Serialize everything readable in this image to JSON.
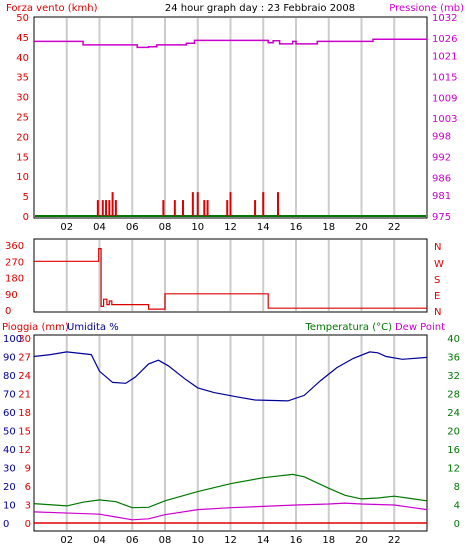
{
  "header": {
    "wind_label": "Forza vento (kmh)",
    "title": "24 hour graph day : 23 Febbraio 2008",
    "pressure_label": "Pressione (mb)"
  },
  "bottom_header": {
    "rain_label": "Pioggia (mm)",
    "humidity_label": "Umidita %",
    "temperature_label": "Temperatura (°C)",
    "dewpoint_label": "Dew Point"
  },
  "direction_labels": [
    "N",
    "W",
    "S",
    "E",
    "N"
  ],
  "x_ticks": [
    "02",
    "04",
    "06",
    "08",
    "10",
    "12",
    "14",
    "16",
    "18",
    "20",
    "22"
  ],
  "colors": {
    "wind": "#dd0000",
    "pressure": "#cc00cc",
    "humidity": "#000099",
    "temperature": "#007700",
    "dewpoint": "#cc00cc",
    "rain": "#dd0000",
    "grid": "#cccccc",
    "base": "#007700"
  },
  "chart_data": [
    {
      "type": "bar",
      "title": "24 hour graph day : 23 Febbraio 2008",
      "y_left": {
        "label": "Forza vento (kmh)",
        "ticks": [
          0,
          5,
          10,
          15,
          20,
          25,
          30,
          35,
          40,
          45,
          50
        ],
        "range": [
          0,
          50
        ]
      },
      "y_right": {
        "label": "Pressione (mb)",
        "ticks": [
          975,
          981,
          986,
          992,
          998,
          1003,
          1009,
          1015,
          1021,
          1026,
          1032
        ],
        "range": [
          975,
          1032
        ]
      },
      "wind_bars": [
        [
          3.9,
          4
        ],
        [
          4.2,
          4
        ],
        [
          4.4,
          4
        ],
        [
          4.6,
          4
        ],
        [
          4.8,
          6
        ],
        [
          5.0,
          4
        ],
        [
          7.9,
          4
        ],
        [
          8.6,
          4
        ],
        [
          9.1,
          4
        ],
        [
          9.7,
          6
        ],
        [
          10.0,
          6
        ],
        [
          10.4,
          4
        ],
        [
          10.6,
          4
        ],
        [
          11.8,
          4
        ],
        [
          12.0,
          6
        ],
        [
          13.5,
          4
        ],
        [
          14.0,
          6
        ],
        [
          14.9,
          6
        ]
      ],
      "pressure": [
        [
          0,
          1025
        ],
        [
          3,
          1024
        ],
        [
          6,
          1024
        ],
        [
          6.3,
          1023.3
        ],
        [
          7,
          1023.5
        ],
        [
          7.5,
          1024
        ],
        [
          8.5,
          1024
        ],
        [
          9.3,
          1024.5
        ],
        [
          9.8,
          1025.3
        ],
        [
          14,
          1025.3
        ],
        [
          14.3,
          1024.6
        ],
        [
          14.6,
          1025.2
        ],
        [
          15,
          1024.3
        ],
        [
          15.5,
          1024.3
        ],
        [
          15.8,
          1025
        ],
        [
          16,
          1024.3
        ],
        [
          17,
          1024.3
        ],
        [
          17.3,
          1025
        ],
        [
          20.5,
          1025
        ],
        [
          20.7,
          1025.6
        ],
        [
          24,
          1025.6
        ]
      ]
    },
    {
      "type": "line",
      "y_left": {
        "ticks": [
          0,
          90,
          180,
          270,
          360
        ],
        "range": [
          0,
          360
        ]
      },
      "y_right": {
        "ticks": [
          "N",
          "W",
          "S",
          "E",
          "N"
        ]
      },
      "direction": [
        [
          0,
          270
        ],
        [
          3.95,
          270
        ],
        [
          3.95,
          340
        ],
        [
          4.1,
          340
        ],
        [
          4.1,
          20
        ],
        [
          4.25,
          20
        ],
        [
          4.25,
          60
        ],
        [
          4.45,
          60
        ],
        [
          4.45,
          30
        ],
        [
          4.6,
          30
        ],
        [
          4.6,
          50
        ],
        [
          4.75,
          50
        ],
        [
          4.75,
          30
        ],
        [
          7,
          30
        ],
        [
          7,
          5
        ],
        [
          8,
          5
        ],
        [
          8,
          90
        ],
        [
          14.3,
          90
        ],
        [
          14.3,
          10
        ],
        [
          24,
          10
        ]
      ]
    },
    {
      "type": "line",
      "y_left": {
        "label": "Pioggia (mm)",
        "ticks": [
          0,
          3,
          6,
          9,
          12,
          15,
          18,
          21,
          24,
          27,
          30
        ],
        "range": [
          0,
          30
        ]
      },
      "y_left_2": {
        "label": "Umidita %",
        "ticks": [
          0,
          10,
          20,
          30,
          40,
          50,
          60,
          70,
          80,
          90,
          100
        ],
        "range": [
          0,
          100
        ]
      },
      "y_right": {
        "label": "Temperatura (°C)",
        "ticks": [
          0,
          4,
          8,
          12,
          16,
          20,
          24,
          28,
          32,
          36,
          40
        ],
        "range": [
          0,
          40
        ]
      },
      "humidity": [
        [
          0,
          90
        ],
        [
          1,
          91
        ],
        [
          2,
          92.5
        ],
        [
          3.5,
          91
        ],
        [
          4,
          82
        ],
        [
          4.8,
          76
        ],
        [
          5.6,
          75.5
        ],
        [
          6.2,
          79
        ],
        [
          7,
          86
        ],
        [
          7.6,
          88
        ],
        [
          8.2,
          85
        ],
        [
          9.2,
          78
        ],
        [
          10,
          73
        ],
        [
          11,
          70.5
        ],
        [
          12.5,
          68
        ],
        [
          13.5,
          66.5
        ],
        [
          15.5,
          66
        ],
        [
          16.5,
          69
        ],
        [
          17.5,
          77
        ],
        [
          18.5,
          84
        ],
        [
          19.5,
          89
        ],
        [
          20.5,
          92.5
        ],
        [
          21,
          92
        ],
        [
          21.5,
          90
        ],
        [
          22.5,
          88.5
        ],
        [
          24,
          89.5
        ]
      ],
      "temperature": [
        [
          0,
          4.2
        ],
        [
          2,
          3.7
        ],
        [
          3,
          4.5
        ],
        [
          4,
          5
        ],
        [
          5,
          4.6
        ],
        [
          6,
          3.3
        ],
        [
          7,
          3.4
        ],
        [
          8,
          4.8
        ],
        [
          10,
          6.8
        ],
        [
          12,
          8.5
        ],
        [
          14,
          9.8
        ],
        [
          15.8,
          10.5
        ],
        [
          16.5,
          10
        ],
        [
          18,
          7.5
        ],
        [
          19,
          6
        ],
        [
          20,
          5.2
        ],
        [
          21,
          5.4
        ],
        [
          22,
          5.8
        ],
        [
          23,
          5.3
        ],
        [
          24,
          4.8
        ]
      ],
      "dewpoint": [
        [
          0,
          2.4
        ],
        [
          2.5,
          2.1
        ],
        [
          4,
          1.9
        ],
        [
          5,
          1.3
        ],
        [
          6,
          0.7
        ],
        [
          7,
          0.9
        ],
        [
          8,
          1.8
        ],
        [
          10,
          2.9
        ],
        [
          12,
          3.3
        ],
        [
          14,
          3.6
        ],
        [
          16,
          3.9
        ],
        [
          18,
          4.1
        ],
        [
          19,
          4.3
        ],
        [
          20,
          4.1
        ],
        [
          21,
          4
        ],
        [
          22,
          3.9
        ],
        [
          23,
          3.4
        ],
        [
          24,
          2.9
        ]
      ],
      "rain": [
        [
          0,
          0
        ],
        [
          24,
          0
        ]
      ]
    }
  ]
}
